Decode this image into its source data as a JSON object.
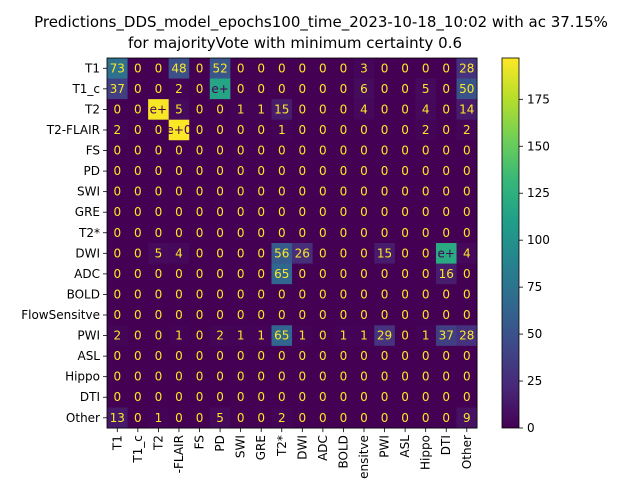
{
  "chart_data": {
    "type": "heatmap",
    "title": "Predictions_DDS_model_epochs100_time_2023-10-18_10:02 with ac 37.15%",
    "subtitle": "for majorityVote with minimum certainty 0.6",
    "row_labels": [
      "T1",
      "T1_c",
      "T2",
      "T2-FLAIR",
      "FS",
      "PD",
      "SWI",
      "GRE",
      "T2*",
      "DWI",
      "ADC",
      "BOLD",
      "FlowSensitve",
      "PWI",
      "ASL",
      "Hippo",
      "DTI",
      "Other"
    ],
    "col_labels": [
      "T1",
      "T1_c",
      "T2",
      "-FLAIR",
      "FS",
      "PD",
      "SWI",
      "GRE",
      "T2*",
      "DWI",
      "ADC",
      "BOLD",
      "ensitve",
      "PWI",
      "ASL",
      "Hippo",
      "DTI",
      "Other"
    ],
    "values": [
      [
        73,
        0,
        0,
        48,
        0,
        52,
        0,
        0,
        0,
        0,
        0,
        0,
        3,
        0,
        0,
        0,
        0,
        28
      ],
      [
        37,
        0,
        0,
        2,
        0,
        116,
        0,
        0,
        0,
        0,
        0,
        0,
        6,
        0,
        0,
        5,
        0,
        50
      ],
      [
        0,
        0,
        195,
        5,
        0,
        0,
        1,
        1,
        15,
        0,
        0,
        0,
        4,
        0,
        0,
        4,
        0,
        14
      ],
      [
        2,
        0,
        0,
        196,
        0,
        0,
        0,
        0,
        1,
        0,
        0,
        0,
        0,
        0,
        0,
        2,
        0,
        2
      ],
      [
        0,
        0,
        0,
        0,
        0,
        0,
        0,
        0,
        0,
        0,
        0,
        0,
        0,
        0,
        0,
        0,
        0,
        0
      ],
      [
        0,
        0,
        0,
        0,
        0,
        0,
        0,
        0,
        0,
        0,
        0,
        0,
        0,
        0,
        0,
        0,
        0,
        0
      ],
      [
        0,
        0,
        0,
        0,
        0,
        0,
        0,
        0,
        0,
        0,
        0,
        0,
        0,
        0,
        0,
        0,
        0,
        0
      ],
      [
        0,
        0,
        0,
        0,
        0,
        0,
        0,
        0,
        0,
        0,
        0,
        0,
        0,
        0,
        0,
        0,
        0,
        0
      ],
      [
        0,
        0,
        0,
        0,
        0,
        0,
        0,
        0,
        0,
        0,
        0,
        0,
        0,
        0,
        0,
        0,
        0,
        0
      ],
      [
        0,
        0,
        5,
        4,
        0,
        0,
        0,
        0,
        56,
        26,
        0,
        0,
        0,
        15,
        0,
        0,
        120,
        4
      ],
      [
        0,
        0,
        0,
        0,
        0,
        0,
        0,
        0,
        65,
        0,
        0,
        0,
        0,
        0,
        0,
        0,
        16,
        0
      ],
      [
        0,
        0,
        0,
        0,
        0,
        0,
        0,
        0,
        0,
        0,
        0,
        0,
        0,
        0,
        0,
        0,
        0,
        0
      ],
      [
        0,
        0,
        0,
        0,
        0,
        0,
        0,
        0,
        0,
        0,
        0,
        0,
        0,
        0,
        0,
        0,
        0,
        0
      ],
      [
        2,
        0,
        0,
        1,
        0,
        2,
        1,
        1,
        65,
        1,
        0,
        1,
        1,
        29,
        0,
        1,
        37,
        28
      ],
      [
        0,
        0,
        0,
        0,
        0,
        0,
        0,
        0,
        0,
        0,
        0,
        0,
        0,
        0,
        0,
        0,
        0,
        0
      ],
      [
        0,
        0,
        0,
        0,
        0,
        0,
        0,
        0,
        0,
        0,
        0,
        0,
        0,
        0,
        0,
        0,
        0,
        0
      ],
      [
        0,
        0,
        0,
        0,
        0,
        0,
        0,
        0,
        0,
        0,
        0,
        0,
        0,
        0,
        0,
        0,
        0,
        0
      ],
      [
        13,
        0,
        1,
        0,
        0,
        5,
        0,
        0,
        2,
        0,
        0,
        0,
        0,
        0,
        0,
        0,
        0,
        9
      ]
    ],
    "cell_text": [
      [
        "73",
        "0",
        "0",
        "48",
        "0",
        "52",
        "0",
        "0",
        "0",
        "0",
        "0",
        "0",
        "3",
        "0",
        "0",
        "0",
        "0",
        "28"
      ],
      [
        "37",
        "0",
        "0",
        "2",
        "0",
        "e+",
        "0",
        "0",
        "0",
        "0",
        "0",
        "0",
        "6",
        "0",
        "0",
        "5",
        "0",
        "50"
      ],
      [
        "0",
        "0",
        "e+",
        "5",
        "0",
        "0",
        "1",
        "1",
        "15",
        "0",
        "0",
        "0",
        "4",
        "0",
        "0",
        "4",
        "0",
        "14"
      ],
      [
        "2",
        "0",
        "0",
        "e+0",
        "0",
        "0",
        "0",
        "0",
        "1",
        "0",
        "0",
        "0",
        "0",
        "0",
        "0",
        "2",
        "0",
        "2"
      ],
      [
        "0",
        "0",
        "0",
        "0",
        "0",
        "0",
        "0",
        "0",
        "0",
        "0",
        "0",
        "0",
        "0",
        "0",
        "0",
        "0",
        "0",
        "0"
      ],
      [
        "0",
        "0",
        "0",
        "0",
        "0",
        "0",
        "0",
        "0",
        "0",
        "0",
        "0",
        "0",
        "0",
        "0",
        "0",
        "0",
        "0",
        "0"
      ],
      [
        "0",
        "0",
        "0",
        "0",
        "0",
        "0",
        "0",
        "0",
        "0",
        "0",
        "0",
        "0",
        "0",
        "0",
        "0",
        "0",
        "0",
        "0"
      ],
      [
        "0",
        "0",
        "0",
        "0",
        "0",
        "0",
        "0",
        "0",
        "0",
        "0",
        "0",
        "0",
        "0",
        "0",
        "0",
        "0",
        "0",
        "0"
      ],
      [
        "0",
        "0",
        "0",
        "0",
        "0",
        "0",
        "0",
        "0",
        "0",
        "0",
        "0",
        "0",
        "0",
        "0",
        "0",
        "0",
        "0",
        "0"
      ],
      [
        "0",
        "0",
        "5",
        "4",
        "0",
        "0",
        "0",
        "0",
        "56",
        "26",
        "0",
        "0",
        "0",
        "15",
        "0",
        "0",
        "e+",
        "4"
      ],
      [
        "0",
        "0",
        "0",
        "0",
        "0",
        "0",
        "0",
        "0",
        "65",
        "0",
        "0",
        "0",
        "0",
        "0",
        "0",
        "0",
        "16",
        "0"
      ],
      [
        "0",
        "0",
        "0",
        "0",
        "0",
        "0",
        "0",
        "0",
        "0",
        "0",
        "0",
        "0",
        "0",
        "0",
        "0",
        "0",
        "0",
        "0"
      ],
      [
        "0",
        "0",
        "0",
        "0",
        "0",
        "0",
        "0",
        "0",
        "0",
        "0",
        "0",
        "0",
        "0",
        "0",
        "0",
        "0",
        "0",
        "0"
      ],
      [
        "2",
        "0",
        "0",
        "1",
        "0",
        "2",
        "1",
        "1",
        "65",
        "1",
        "0",
        "1",
        "1",
        "29",
        "0",
        "1",
        "37",
        "28"
      ],
      [
        "0",
        "0",
        "0",
        "0",
        "0",
        "0",
        "0",
        "0",
        "0",
        "0",
        "0",
        "0",
        "0",
        "0",
        "0",
        "0",
        "0",
        "0"
      ],
      [
        "0",
        "0",
        "0",
        "0",
        "0",
        "0",
        "0",
        "0",
        "0",
        "0",
        "0",
        "0",
        "0",
        "0",
        "0",
        "0",
        "0",
        "0"
      ],
      [
        "0",
        "0",
        "0",
        "0",
        "0",
        "0",
        "0",
        "0",
        "0",
        "0",
        "0",
        "0",
        "0",
        "0",
        "0",
        "0",
        "0",
        "0"
      ],
      [
        "13",
        "0",
        "1",
        "0",
        "0",
        "5",
        "0",
        "0",
        "2",
        "0",
        "0",
        "0",
        "0",
        "0",
        "0",
        "0",
        "0",
        "9"
      ]
    ],
    "colorbar": {
      "colormap": "viridis",
      "vmin": 0,
      "vmax": 197,
      "ticks": [
        0,
        25,
        50,
        75,
        100,
        125,
        150,
        175
      ]
    },
    "colors": {
      "cell_text_light": "#fde725",
      "cell_text_dark": "#440154",
      "viridis": [
        "#440154",
        "#482878",
        "#3e4989",
        "#31688e",
        "#26828e",
        "#1f9e89",
        "#35b779",
        "#6ece58",
        "#b5de2b",
        "#fde725"
      ]
    }
  }
}
